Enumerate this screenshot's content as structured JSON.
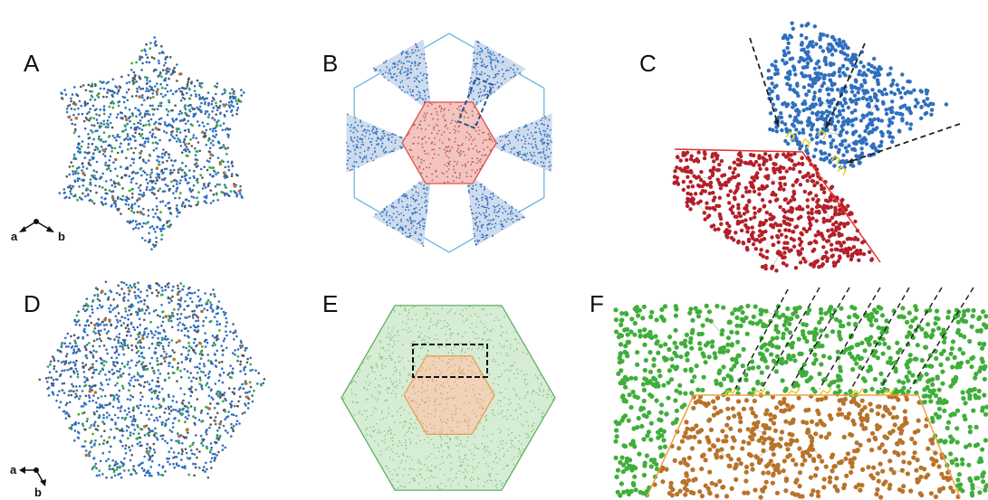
{
  "panels": [
    {
      "id": "A",
      "label": "A"
    },
    {
      "id": "B",
      "label": "B"
    },
    {
      "id": "C",
      "label": "C"
    },
    {
      "id": "D",
      "label": "D"
    },
    {
      "id": "E",
      "label": "E"
    },
    {
      "id": "F",
      "label": "F"
    }
  ],
  "axes": {
    "A": {
      "a": "a",
      "b": "b"
    },
    "D": {
      "a": "a",
      "b": "b"
    }
  },
  "colors": {
    "blue_atoms": "#2f6fbf",
    "red_atoms": "#b3202a",
    "green_atoms": "#3fae3a",
    "orange_atoms": "#b8732a",
    "yellow_links": "#e2d22a",
    "grey_atoms": "#555555",
    "hex_outline_blue": "#6fb6e0",
    "hex_outline_red": "#e0524a",
    "hex_outline_green": "#5aa85a",
    "hex_outline_orange": "#e89a4a",
    "dashed_box_blue": "#2b4e8a",
    "dashed_box_black": "#111111"
  }
}
